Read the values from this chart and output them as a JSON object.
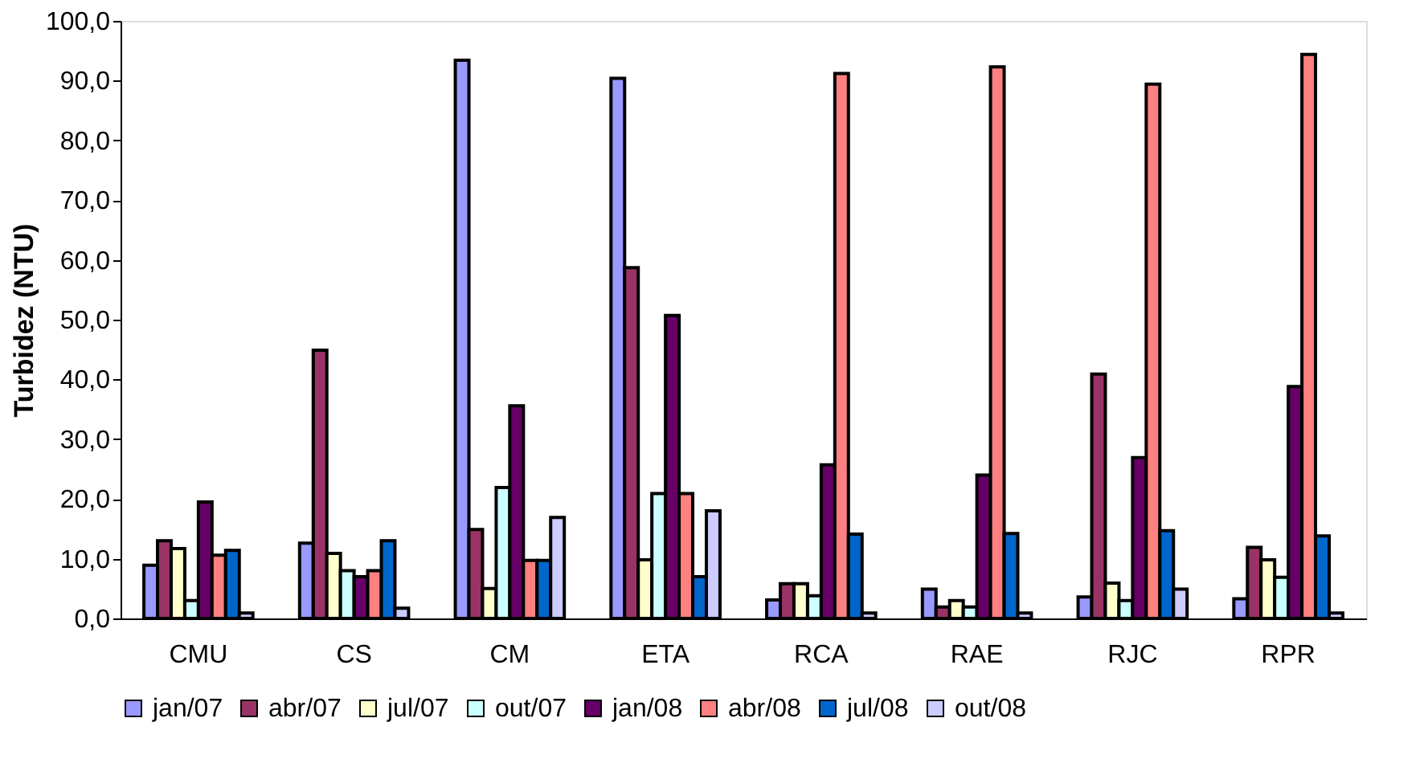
{
  "chart_data": {
    "type": "bar",
    "ylabel": "Turbidez (NTU)",
    "categories": [
      "CMU",
      "CS",
      "CM",
      "ETA",
      "RCA",
      "RAE",
      "RJC",
      "RPR"
    ],
    "series": [
      {
        "name": "jan/07",
        "color": "#9999ff",
        "values": [
          8.9,
          12.6,
          93.4,
          90.4,
          3.1,
          4.9,
          3.6,
          3.3
        ]
      },
      {
        "name": "abr/07",
        "color": "#993366",
        "values": [
          13.0,
          44.9,
          14.9,
          58.7,
          5.8,
          1.9,
          40.9,
          11.9
        ]
      },
      {
        "name": "jul/07",
        "color": "#ffffcc",
        "values": [
          11.7,
          10.9,
          5.0,
          9.8,
          5.8,
          3.0,
          5.9,
          9.8
        ]
      },
      {
        "name": "out/07",
        "color": "#ccffff",
        "values": [
          3.0,
          8.0,
          21.9,
          20.9,
          3.8,
          1.9,
          3.0,
          6.9
        ]
      },
      {
        "name": "jan/08",
        "color": "#660066",
        "values": [
          19.5,
          7.0,
          35.6,
          50.7,
          25.7,
          24.0,
          26.9,
          38.8
        ]
      },
      {
        "name": "abr/08",
        "color": "#ff8080",
        "values": [
          10.6,
          8.0,
          9.7,
          20.9,
          91.2,
          92.3,
          89.4,
          94.4
        ]
      },
      {
        "name": "jul/08",
        "color": "#0066cc",
        "values": [
          11.4,
          13.0,
          9.7,
          7.0,
          14.1,
          14.2,
          14.7,
          13.8
        ]
      },
      {
        "name": "out/08",
        "color": "#ccccff",
        "values": [
          0.9,
          1.7,
          16.9,
          18.0,
          0.9,
          0.9,
          4.9,
          0.9
        ]
      }
    ],
    "ylim": [
      0,
      100
    ],
    "yticks": [
      {
        "value": 0,
        "label": "0,0"
      },
      {
        "value": 10,
        "label": "10,0"
      },
      {
        "value": 20,
        "label": "20,0"
      },
      {
        "value": 30,
        "label": "30,0"
      },
      {
        "value": 40,
        "label": "40,0"
      },
      {
        "value": 50,
        "label": "50,0"
      },
      {
        "value": 60,
        "label": "60,0"
      },
      {
        "value": 70,
        "label": "70,0"
      },
      {
        "value": 80,
        "label": "80,0"
      },
      {
        "value": 90,
        "label": "90,0"
      },
      {
        "value": 100,
        "label": "100,0"
      }
    ],
    "grid": false,
    "legend": "bottom"
  }
}
